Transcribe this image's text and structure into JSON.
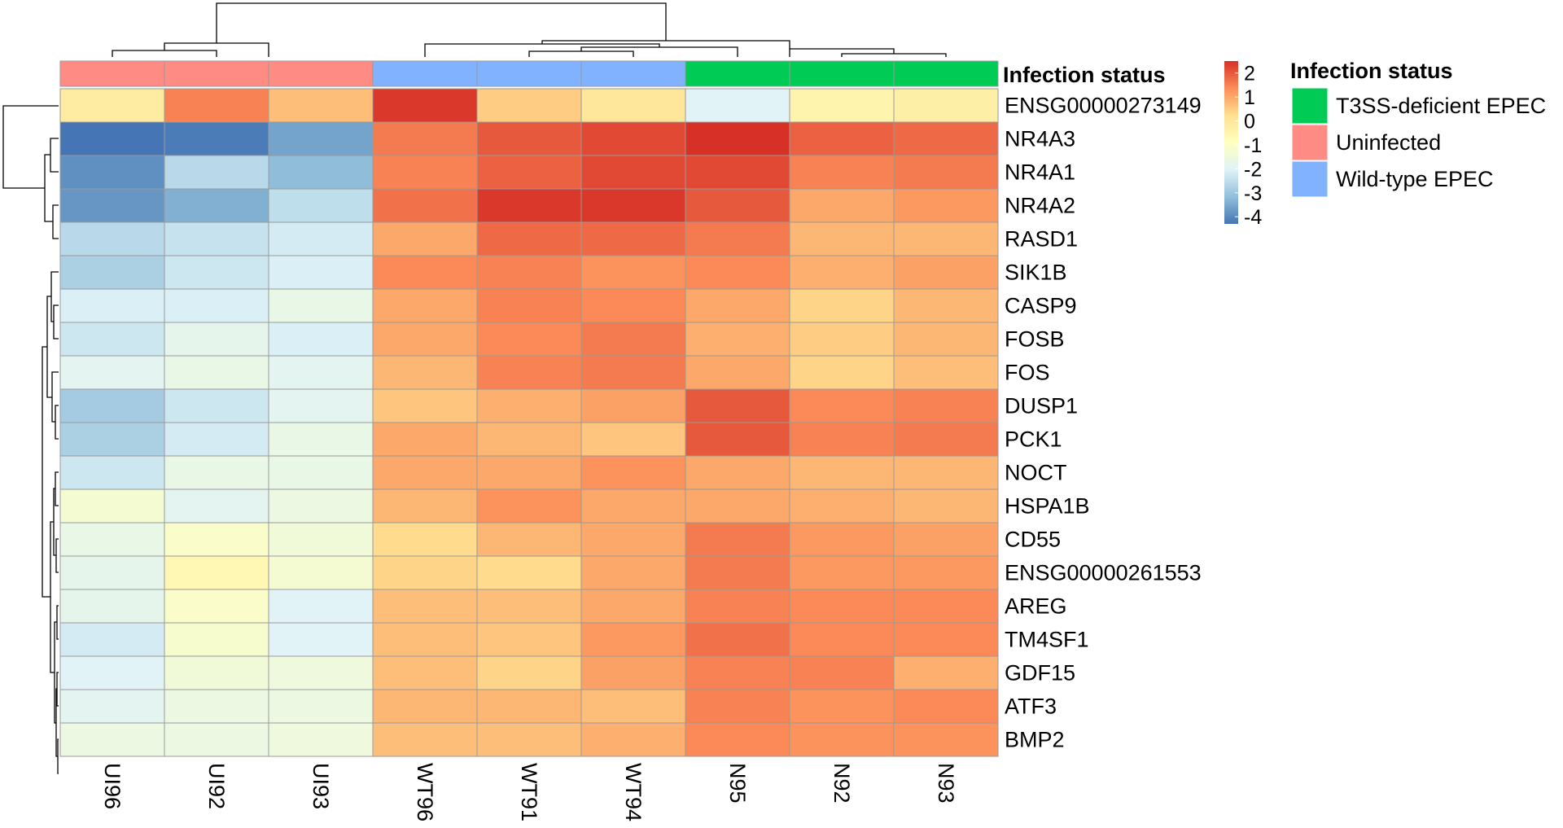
{
  "chart_data": {
    "type": "heatmap",
    "columns": [
      "UI96",
      "UI92",
      "UI93",
      "WT96",
      "WT91",
      "WT94",
      "N95",
      "N92",
      "N93"
    ],
    "rows": [
      "ENSG00000273149",
      "NR4A3",
      "NR4A1",
      "NR4A2",
      "RASD1",
      "SIK1B",
      "CASP9",
      "FOSB",
      "FOS",
      "DUSP1",
      "PCK1",
      "NOCT",
      "HSPA1B",
      "CD55",
      "ENSG00000261553",
      "AREG",
      "TM4SF1",
      "GDF15",
      "ATF3",
      "BMP2"
    ],
    "values": [
      [
        -0.2,
        1.5,
        0.7,
        2.4,
        0.5,
        0.0,
        -2.0,
        -0.5,
        -0.3
      ],
      [
        -4.3,
        -4.2,
        -3.6,
        1.6,
        2.0,
        2.2,
        2.5,
        1.9,
        1.8
      ],
      [
        -3.9,
        -2.6,
        -3.2,
        1.5,
        1.9,
        2.2,
        2.2,
        1.5,
        1.6
      ],
      [
        -3.8,
        -3.4,
        -2.5,
        1.7,
        2.4,
        2.4,
        2.0,
        1.0,
        1.2
      ],
      [
        -2.6,
        -2.4,
        -2.2,
        1.0,
        1.8,
        1.8,
        1.6,
        0.8,
        0.8
      ],
      [
        -2.8,
        -2.3,
        -2.1,
        1.4,
        1.5,
        1.3,
        1.4,
        0.9,
        1.1
      ],
      [
        -2.1,
        -2.1,
        -1.7,
        1.0,
        1.5,
        1.4,
        1.0,
        0.4,
        0.8
      ],
      [
        -2.3,
        -1.8,
        -2.1,
        1.0,
        1.4,
        1.6,
        0.9,
        0.5,
        0.8
      ],
      [
        -1.9,
        -1.7,
        -1.9,
        0.8,
        1.5,
        1.6,
        1.0,
        0.4,
        0.7
      ],
      [
        -2.9,
        -2.3,
        -1.9,
        0.6,
        0.9,
        1.1,
        2.0,
        1.4,
        1.5
      ],
      [
        -2.8,
        -2.2,
        -1.7,
        1.0,
        0.8,
        0.6,
        2.0,
        1.5,
        1.6
      ],
      [
        -2.3,
        -1.7,
        -1.7,
        1.0,
        1.0,
        1.3,
        1.0,
        0.8,
        0.8
      ],
      [
        -1.3,
        -1.9,
        -1.6,
        0.8,
        1.3,
        1.0,
        1.0,
        0.9,
        0.8
      ],
      [
        -1.7,
        -1.1,
        -1.4,
        0.3,
        0.8,
        1.0,
        1.6,
        1.2,
        1.1
      ],
      [
        -1.8,
        -0.6,
        -1.3,
        0.4,
        0.3,
        1.0,
        1.6,
        1.2,
        1.2
      ],
      [
        -1.8,
        -1.1,
        -2.0,
        0.7,
        0.7,
        1.0,
        1.5,
        1.4,
        1.4
      ],
      [
        -2.2,
        -1.2,
        -2.0,
        0.7,
        0.6,
        1.2,
        1.7,
        1.4,
        1.4
      ],
      [
        -2.0,
        -1.4,
        -1.5,
        0.7,
        0.4,
        1.1,
        1.5,
        1.5,
        0.9
      ],
      [
        -1.9,
        -1.6,
        -1.6,
        0.8,
        0.8,
        0.7,
        1.5,
        1.3,
        1.4
      ],
      [
        -1.6,
        -1.6,
        -1.5,
        0.7,
        0.7,
        0.9,
        1.4,
        1.3,
        1.3
      ]
    ],
    "annotation": {
      "title": "Infection status",
      "column_groups": [
        "Uninfected",
        "Uninfected",
        "Uninfected",
        "Wild-type EPEC",
        "Wild-type EPEC",
        "Wild-type EPEC",
        "T3SS-deficient EPEC",
        "T3SS-deficient EPEC",
        "T3SS-deficient EPEC"
      ],
      "legend": [
        {
          "label": "T3SS-deficient EPEC",
          "color": "#00cc55"
        },
        {
          "label": "Uninfected",
          "color": "#ff8c84"
        },
        {
          "label": "Wild-type EPEC",
          "color": "#80b2ff"
        }
      ]
    },
    "colorbar": {
      "range": [
        -4.3,
        2.5
      ],
      "ticks": [
        2,
        1,
        0,
        -1,
        -2,
        -3,
        -4
      ],
      "tick_labels": [
        "2",
        "1",
        "0",
        "-1",
        "-2",
        "-3",
        "-4"
      ],
      "stops": [
        "#4575b4",
        "#91bfdb",
        "#e0f3f8",
        "#ffffbf",
        "#fee090",
        "#fc8d59",
        "#d73027"
      ]
    },
    "dendrograms": {
      "columns": "hierarchical clustering of samples",
      "rows": "hierarchical clustering of genes"
    },
    "grid": true
  }
}
